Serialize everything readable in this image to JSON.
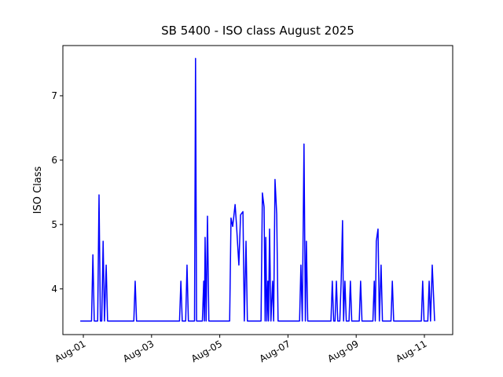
{
  "chart_data": {
    "type": "line",
    "title": "SB 5400 - ISO class August 2025",
    "ylabel": "ISO Class",
    "color": "#0000ff",
    "x": [
      0.91,
      1.24,
      1.28,
      1.32,
      1.42,
      1.46,
      1.5,
      1.54,
      1.58,
      1.62,
      1.67,
      1.71,
      2.48,
      2.52,
      2.56,
      3.82,
      3.86,
      3.9,
      4.0,
      4.04,
      4.08,
      4.26,
      4.29,
      4.32,
      4.49,
      4.53,
      4.55,
      4.57,
      4.6,
      4.64,
      4.68,
      5.29,
      5.33,
      5.38,
      5.45,
      5.49,
      5.56,
      5.61,
      5.68,
      5.72,
      5.77,
      5.81,
      6.21,
      6.25,
      6.3,
      6.33,
      6.35,
      6.38,
      6.41,
      6.43,
      6.46,
      6.5,
      6.55,
      6.58,
      6.62,
      6.67,
      6.71,
      7.34,
      7.38,
      7.42,
      7.47,
      7.51,
      7.54,
      7.58,
      8.26,
      8.3,
      8.34,
      8.38,
      8.42,
      8.46,
      8.52,
      8.56,
      8.6,
      8.63,
      8.67,
      8.71,
      8.79,
      8.83,
      8.87,
      9.09,
      9.13,
      9.17,
      9.49,
      9.53,
      9.56,
      9.59,
      9.64,
      9.68,
      9.73,
      9.77,
      10.02,
      10.06,
      10.1,
      10.91,
      10.95,
      10.99,
      11.1,
      11.14,
      11.18,
      11.23,
      11.3
    ],
    "values": [
      3.5,
      3.5,
      4.53,
      3.5,
      3.5,
      5.46,
      3.5,
      3.5,
      4.74,
      3.5,
      4.37,
      3.5,
      3.5,
      4.12,
      3.5,
      3.5,
      4.12,
      3.5,
      3.5,
      4.37,
      3.5,
      3.5,
      7.58,
      3.5,
      3.5,
      4.12,
      3.5,
      4.8,
      3.5,
      5.13,
      3.5,
      3.5,
      5.1,
      4.97,
      5.31,
      5.0,
      4.37,
      5.15,
      5.2,
      3.5,
      4.74,
      3.5,
      3.5,
      5.49,
      5.27,
      3.5,
      4.8,
      3.5,
      4.12,
      3.5,
      4.93,
      3.5,
      4.12,
      3.5,
      5.7,
      5.16,
      3.5,
      3.5,
      4.37,
      3.5,
      6.25,
      3.5,
      4.74,
      3.5,
      3.5,
      4.12,
      3.5,
      3.5,
      4.12,
      3.5,
      3.5,
      4.12,
      5.06,
      3.5,
      4.12,
      3.5,
      3.5,
      4.12,
      3.5,
      3.5,
      4.12,
      3.5,
      3.5,
      4.12,
      3.5,
      4.74,
      4.93,
      3.5,
      4.37,
      3.5,
      3.5,
      4.12,
      3.5,
      3.5,
      4.12,
      3.5,
      3.5,
      4.12,
      3.5,
      4.37,
      3.5
    ],
    "xlim": [
      0.4,
      11.83
    ],
    "ylim": [
      3.29,
      7.78
    ],
    "xticks": [
      {
        "value": 1,
        "label": "Aug-01"
      },
      {
        "value": 3,
        "label": "Aug-03"
      },
      {
        "value": 5,
        "label": "Aug-05"
      },
      {
        "value": 7,
        "label": "Aug-07"
      },
      {
        "value": 9,
        "label": "Aug-09"
      },
      {
        "value": 11,
        "label": "Aug-11"
      }
    ],
    "yticks": [
      4,
      5,
      6,
      7
    ]
  }
}
